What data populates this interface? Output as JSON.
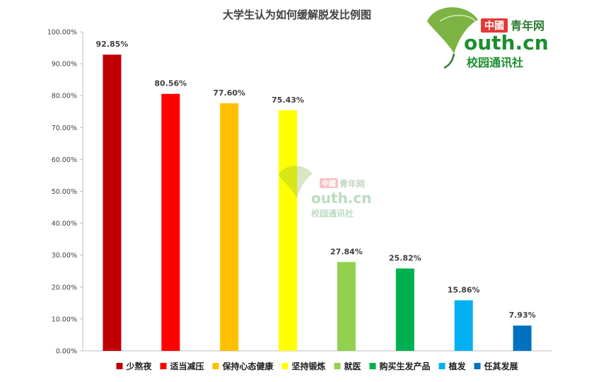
{
  "chart_data": {
    "type": "bar",
    "title": "大学生认为如何缓解脱发比例图",
    "categories": [
      "少熬夜",
      "适当减压",
      "保持心态健康",
      "坚持锻炼",
      "就医",
      "购买生发产品",
      "植发",
      "任其发展"
    ],
    "values": [
      92.85,
      80.56,
      77.6,
      75.43,
      27.84,
      25.82,
      15.86,
      7.93
    ],
    "value_labels": [
      "92.85%",
      "80.56%",
      "77.60%",
      "75.43%",
      "27.84%",
      "25.82%",
      "15.86%",
      "7.93%"
    ],
    "colors": [
      "#c00000",
      "#ff0000",
      "#ffc000",
      "#ffff00",
      "#92d050",
      "#00b050",
      "#00b0f0",
      "#0070c0"
    ],
    "ylim": [
      0,
      100
    ],
    "yticks": [
      "0.00%",
      "10.00%",
      "20.00%",
      "30.00%",
      "40.00%",
      "50.00%",
      "60.00%",
      "70.00%",
      "80.00%",
      "90.00%",
      "100.00%"
    ],
    "xlabel": "",
    "ylabel": "",
    "grid": false,
    "legend": "bottom"
  },
  "watermark": {
    "brand_cn": "中國",
    "brand_name": "青年网",
    "domain": "outh.cn",
    "subtitle": "校园通讯社"
  }
}
